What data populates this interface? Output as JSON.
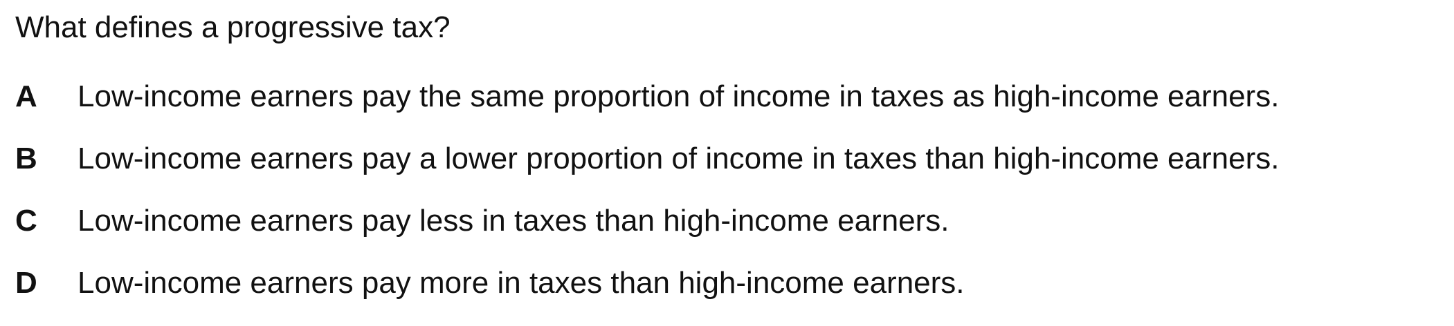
{
  "question": {
    "text": "What defines a progressive tax?"
  },
  "options": [
    {
      "letter": "A",
      "text": "Low-income earners pay the same proportion of income in taxes as high-income earners."
    },
    {
      "letter": "B",
      "text": "Low-income earners pay a lower proportion of income in taxes than high-income earners."
    },
    {
      "letter": "C",
      "text": "Low-income earners pay less in taxes than high-income earners."
    },
    {
      "letter": "D",
      "text": "Low-income earners pay more in taxes than high-income earners."
    }
  ]
}
